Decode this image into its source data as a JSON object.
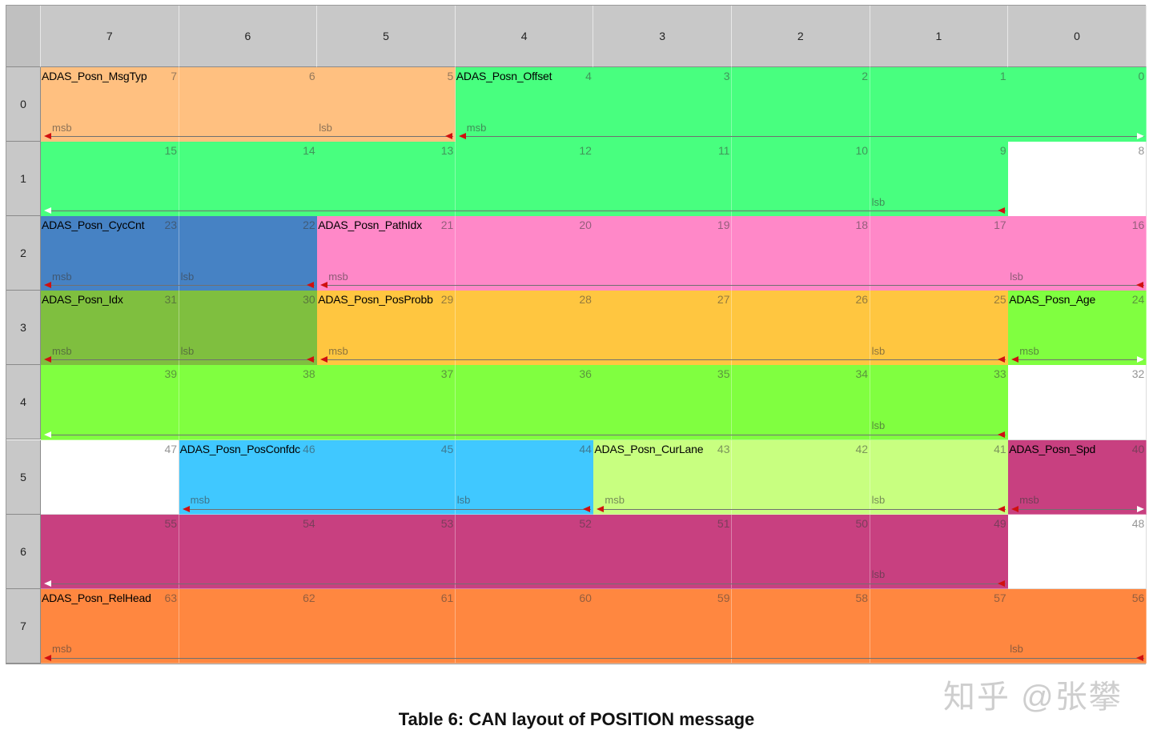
{
  "column_headers": [
    "7",
    "6",
    "5",
    "4",
    "3",
    "2",
    "1",
    "0"
  ],
  "row_headers": [
    "0",
    "1",
    "2",
    "3",
    "4",
    "5",
    "6",
    "7"
  ],
  "colors": {
    "orange_light": "#FFC080",
    "green": "#48FF7F",
    "blue": "#4682C4",
    "pink": "#FF88C8",
    "yellow": "#FFC640",
    "olive": "#7FBF3F",
    "lime": "#80FF40",
    "white": "#FFFFFF",
    "cyan": "#40C8FF",
    "lightlime": "#C8FF80",
    "magenta": "#C84080",
    "orange": "#FF8740"
  },
  "signals": [
    {
      "name": "ADAS_Posn_MsgTyp",
      "color": "orange_light",
      "msb": 7,
      "lsb": 5
    },
    {
      "name": "ADAS_Posn_Offset",
      "color": "green",
      "msb": 4,
      "lsb": 9
    },
    {
      "name": "ADAS_Posn_CycCnt",
      "color": "blue",
      "msb": 23,
      "lsb": 22
    },
    {
      "name": "ADAS_Posn_PathIdx",
      "color": "pink",
      "msb": 21,
      "lsb": 16
    },
    {
      "name": "ADAS_Posn_Idx",
      "color": "olive",
      "msb": 31,
      "lsb": 30
    },
    {
      "name": "ADAS_Posn_PosProbb",
      "color": "yellow",
      "msb": 29,
      "lsb": 25
    },
    {
      "name": "ADAS_Posn_Age",
      "color": "lime",
      "msb": 24,
      "lsb": 33
    },
    {
      "name": "ADAS_Posn_PosConfdc",
      "color": "cyan",
      "msb": 46,
      "lsb": 44
    },
    {
      "name": "ADAS_Posn_CurLane",
      "color": "lightlime",
      "msb": 43,
      "lsb": 41
    },
    {
      "name": "ADAS_Posn_Spd",
      "color": "magenta",
      "msb": 40,
      "lsb": 49
    },
    {
      "name": "ADAS_Posn_RelHead",
      "color": "orange",
      "msb": 63,
      "lsb": 56
    }
  ],
  "labels": {
    "msb": "msb",
    "lsb": "lsb",
    "name_display": {
      "ADAS_Posn_PosConfdc": "ADAS_Posn_PosConfdc"
    }
  },
  "caption": "Table 6: CAN layout of POSITION message",
  "watermark": "知乎 @张攀"
}
